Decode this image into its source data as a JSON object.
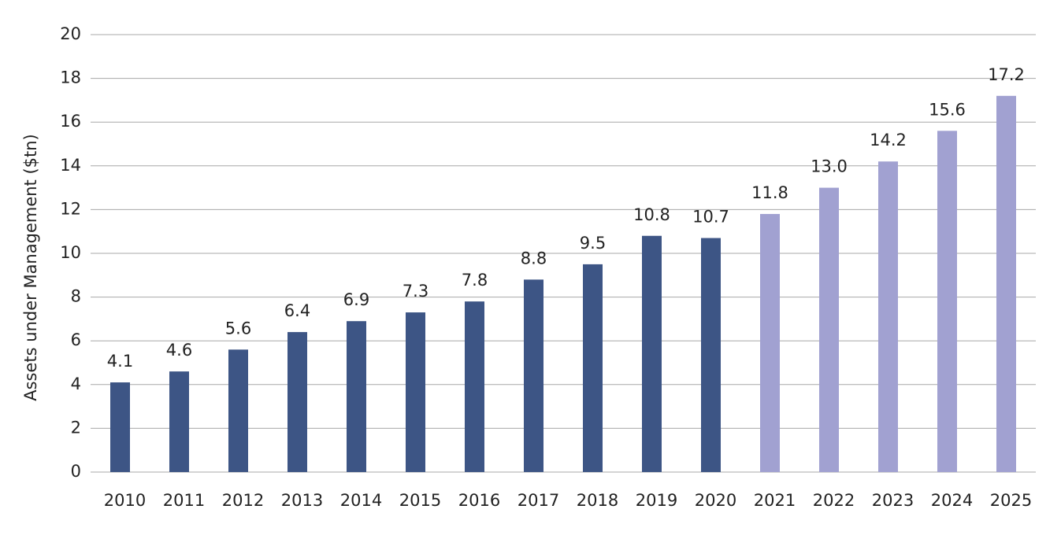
{
  "chart_data": {
    "type": "bar",
    "y_label": "Assets under Management ($tn)",
    "categories": [
      "2010",
      "2011",
      "2012",
      "2013",
      "2014",
      "2015",
      "2016",
      "2017",
      "2018",
      "2019",
      "2020",
      "2021",
      "2022",
      "2023",
      "2024",
      "2025"
    ],
    "values": [
      4.1,
      4.6,
      5.6,
      6.4,
      6.9,
      7.3,
      7.8,
      8.8,
      9.5,
      10.8,
      10.7,
      11.8,
      13.0,
      14.2,
      15.6,
      17.2
    ],
    "value_labels": [
      "4.1",
      "4.6",
      "5.6",
      "6.4",
      "6.9",
      "7.3",
      "7.8",
      "8.8",
      "9.5",
      "10.8",
      "10.7",
      "11.8",
      "13.0",
      "14.2",
      "15.6",
      "17.2"
    ],
    "colors": [
      "#3d5585",
      "#3d5585",
      "#3d5585",
      "#3d5585",
      "#3d5585",
      "#3d5585",
      "#3d5585",
      "#3d5585",
      "#3d5585",
      "#3d5585",
      "#3d5585",
      "#a1a1d1",
      "#a1a1d1",
      "#a1a1d1",
      "#a1a1d1",
      "#a1a1d1"
    ],
    "ylim": [
      0,
      20
    ],
    "yticks": [
      0,
      2,
      4,
      6,
      8,
      10,
      12,
      14,
      16,
      18,
      20
    ],
    "grid": true
  }
}
